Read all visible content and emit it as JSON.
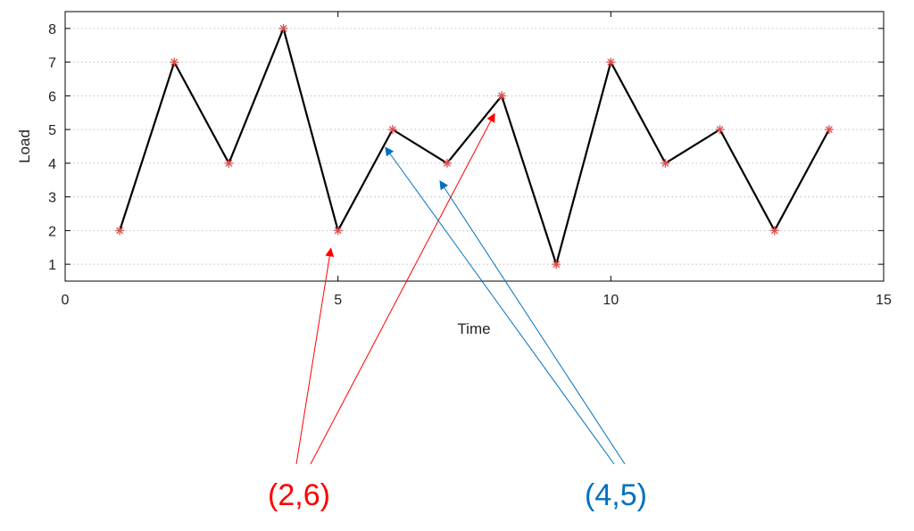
{
  "chart_data": {
    "type": "line",
    "title": "",
    "xlabel": "Time",
    "ylabel": "Load",
    "xlim": [
      0,
      15
    ],
    "ylim": [
      0.5,
      8.5
    ],
    "xticks": [
      0,
      5,
      10,
      15
    ],
    "yticks": [
      1,
      2,
      3,
      4,
      5,
      6,
      7,
      8
    ],
    "grid": "dotted-horizontal",
    "series": [
      {
        "x": [
          1,
          2,
          3,
          4,
          5,
          6,
          7,
          8,
          9,
          10,
          11,
          12,
          13,
          14
        ],
        "y": [
          2,
          7,
          4,
          8,
          2,
          5,
          4,
          6,
          1,
          7,
          4,
          5,
          2,
          5
        ],
        "line_color": "#000000",
        "marker_color": "#e05050",
        "marker": "asterisk"
      }
    ],
    "annotations": [
      {
        "label": "(2,6)",
        "color": "#ff0000",
        "targets": [
          [
            5,
            2
          ],
          [
            8,
            6
          ]
        ]
      },
      {
        "label": "(4,5)",
        "color": "#0070c0",
        "targets": [
          [
            6,
            5
          ],
          [
            7,
            4
          ]
        ]
      }
    ]
  }
}
